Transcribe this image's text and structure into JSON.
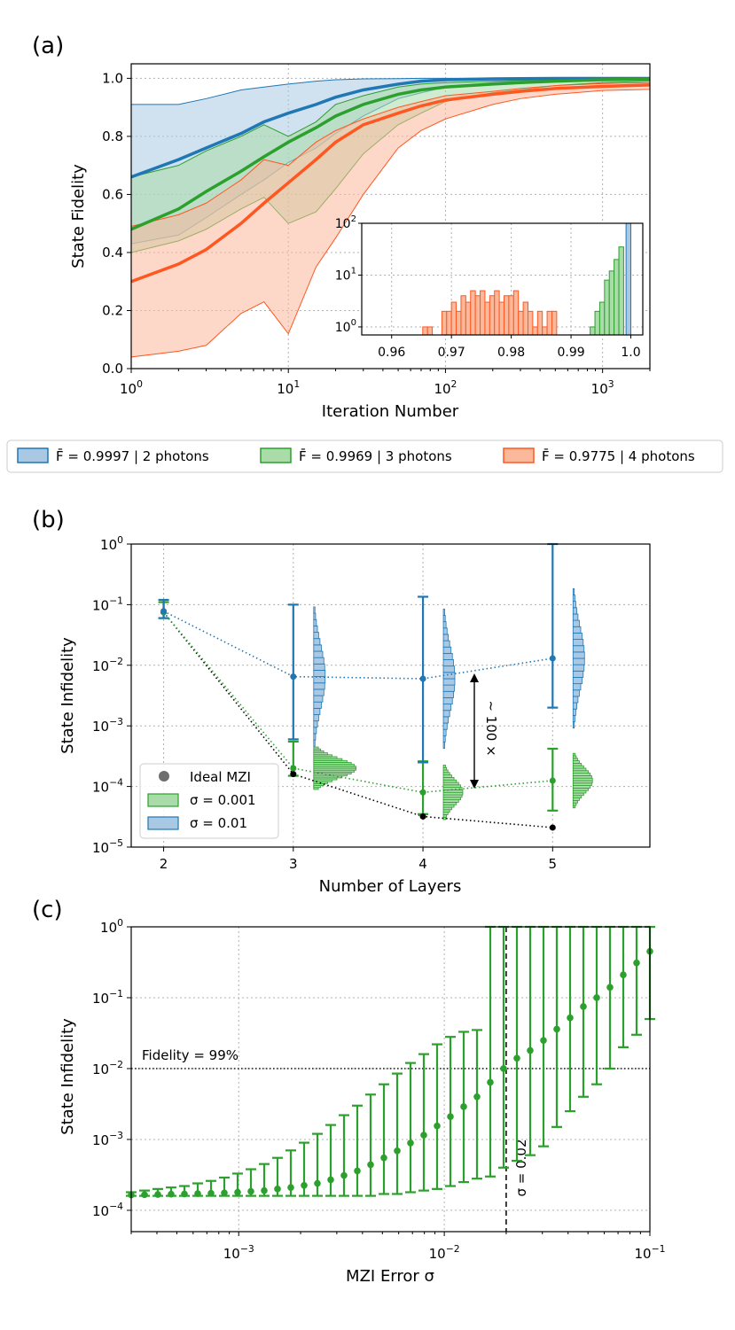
{
  "colors": {
    "blue": "#1f77b4",
    "green": "#2ca02c",
    "orange": "#ff5722",
    "blue_fill": "#a9c8e4",
    "green_fill": "#a9dca9",
    "orange_fill": "#fbb89a"
  },
  "chart_data": [
    {
      "panel": "(a)",
      "type": "line",
      "xscale": "log",
      "xlim": [
        1,
        2000
      ],
      "ylim": [
        0.0,
        1.05
      ],
      "xlabel": "Iteration Number",
      "ylabel": "State Fidelity",
      "xticks": [
        1,
        10,
        100,
        1000
      ],
      "xtick_labels": [
        "10^0",
        "10^1",
        "10^2",
        "10^3"
      ],
      "yticks": [
        0.0,
        0.2,
        0.4,
        0.6,
        0.8,
        1.0
      ],
      "ytick_labels": [
        "0.0",
        "0.2",
        "0.4",
        "0.6",
        "0.8",
        "1.0"
      ],
      "x": [
        1,
        2,
        3,
        5,
        7,
        10,
        15,
        20,
        30,
        50,
        70,
        100,
        200,
        300,
        500,
        1000,
        2000
      ],
      "series": [
        {
          "name": "2 photons",
          "color": "blue",
          "mean": [
            0.66,
            0.72,
            0.76,
            0.81,
            0.85,
            0.88,
            0.91,
            0.935,
            0.96,
            0.98,
            0.99,
            0.995,
            0.998,
            0.999,
            0.9995,
            0.9997,
            0.9997
          ],
          "upper": [
            0.91,
            0.91,
            0.93,
            0.96,
            0.97,
            0.98,
            0.99,
            0.995,
            0.998,
            0.999,
            1.0,
            1.0,
            1.0,
            1.0,
            1.0,
            1.0,
            1.0
          ],
          "lower": [
            0.43,
            0.46,
            0.52,
            0.6,
            0.65,
            0.71,
            0.76,
            0.81,
            0.87,
            0.93,
            0.95,
            0.97,
            0.985,
            0.99,
            0.995,
            0.998,
            0.999
          ]
        },
        {
          "name": "3 photons",
          "color": "green",
          "mean": [
            0.48,
            0.55,
            0.61,
            0.68,
            0.73,
            0.78,
            0.83,
            0.87,
            0.91,
            0.945,
            0.96,
            0.97,
            0.98,
            0.985,
            0.99,
            0.995,
            0.9969
          ],
          "upper": [
            0.66,
            0.7,
            0.75,
            0.8,
            0.84,
            0.8,
            0.85,
            0.91,
            0.94,
            0.97,
            0.98,
            0.985,
            0.99,
            0.993,
            0.996,
            0.998,
            0.999
          ],
          "lower": [
            0.4,
            0.44,
            0.48,
            0.55,
            0.59,
            0.5,
            0.54,
            0.62,
            0.74,
            0.84,
            0.88,
            0.92,
            0.95,
            0.96,
            0.975,
            0.985,
            0.99
          ]
        },
        {
          "name": "4 photons",
          "color": "orange",
          "mean": [
            0.3,
            0.36,
            0.41,
            0.5,
            0.57,
            0.64,
            0.72,
            0.78,
            0.84,
            0.88,
            0.905,
            0.925,
            0.945,
            0.955,
            0.965,
            0.972,
            0.977
          ],
          "upper": [
            0.49,
            0.53,
            0.57,
            0.65,
            0.72,
            0.7,
            0.78,
            0.82,
            0.86,
            0.9,
            0.92,
            0.94,
            0.955,
            0.965,
            0.975,
            0.982,
            0.985
          ],
          "lower": [
            0.04,
            0.06,
            0.08,
            0.19,
            0.23,
            0.12,
            0.35,
            0.45,
            0.6,
            0.76,
            0.82,
            0.86,
            0.91,
            0.93,
            0.945,
            0.958,
            0.962
          ]
        }
      ],
      "legend": [
        {
          "label": "F̄ = 0.9997 | 2 photons",
          "color": "blue"
        },
        {
          "label": "F̄ = 0.9969 | 3 photons",
          "color": "green"
        },
        {
          "label": "F̄ = 0.9775 | 4 photons",
          "color": "orange"
        }
      ],
      "inset": {
        "type": "histogram",
        "xlim": [
          0.955,
          1.002
        ],
        "yscale": "log",
        "ylim": [
          0.7,
          100
        ],
        "xticks": [
          0.96,
          0.97,
          0.98,
          0.99,
          1.0
        ],
        "xtick_labels": [
          "0.96",
          "0.97",
          "0.98",
          "0.99",
          "1.0"
        ],
        "yticks": [
          1,
          10,
          100
        ],
        "ytick_labels": [
          "10^0",
          "10^1",
          "10^2"
        ],
        "bin_width": 0.0008,
        "orange_bins": [
          0.9652,
          0.966,
          0.9684,
          0.9692,
          0.97,
          0.9708,
          0.9716,
          0.9724,
          0.9732,
          0.974,
          0.9748,
          0.9756,
          0.9764,
          0.9772,
          0.978,
          0.9788,
          0.9796,
          0.9804,
          0.9812,
          0.982,
          0.9828,
          0.9836,
          0.9844,
          0.9852,
          0.986,
          0.9868
        ],
        "orange_counts": [
          1,
          1,
          2,
          2,
          3,
          2,
          4,
          3,
          5,
          4,
          5,
          3,
          4,
          5,
          3,
          4,
          4,
          5,
          2,
          3,
          2,
          1,
          2,
          1,
          2,
          2
        ],
        "green_bins": [
          0.9932,
          0.994,
          0.9948,
          0.9956,
          0.9964,
          0.9972,
          0.998
        ],
        "green_counts": [
          1,
          2,
          3,
          8,
          12,
          20,
          35
        ],
        "blue_bins": [
          0.9992
        ],
        "blue_counts": [
          100
        ]
      }
    },
    {
      "panel": "(b)",
      "type": "scatter",
      "xlim": [
        1.75,
        5.75
      ],
      "yscale": "log",
      "ylim": [
        1e-05,
        1
      ],
      "xlabel": "Number of Layers",
      "ylabel": "State Infidelity",
      "xticks": [
        2,
        3,
        4,
        5
      ],
      "xtick_labels": [
        "2",
        "3",
        "4",
        "5"
      ],
      "yticks": [
        1e-05,
        0.0001,
        0.001,
        0.01,
        0.1,
        1
      ],
      "ytick_labels": [
        "10^-5",
        "10^-4",
        "10^-3",
        "10^-2",
        "10^-1",
        "10^0"
      ],
      "series": [
        {
          "name": "Ideal MZI",
          "color": "#000000",
          "x": [
            2,
            3,
            4,
            5
          ],
          "y": [
            0.075,
            0.00016,
            3.2e-05,
            2.1e-05
          ]
        },
        {
          "name": "σ = 0.001",
          "color": "green",
          "x": [
            2,
            3,
            4,
            5
          ],
          "y": [
            0.075,
            0.0002,
            8e-05,
            0.000125
          ],
          "err_low": [
            0.06,
            0.00015,
            3.5e-05,
            4e-05
          ],
          "err_high": [
            0.11,
            0.00055,
            0.00026,
            0.00042
          ]
        },
        {
          "name": "σ = 0.01",
          "color": "blue",
          "x": [
            2,
            3,
            4,
            5
          ],
          "y": [
            0.078,
            0.0065,
            0.006,
            0.013
          ],
          "err_low": [
            0.06,
            0.0006,
            0.00025,
            0.002
          ],
          "err_high": [
            0.12,
            0.1,
            0.135,
            1.0
          ]
        }
      ],
      "legend": [
        {
          "label": "Ideal MZI"
        },
        {
          "label": "σ = 0.001"
        },
        {
          "label": "σ = 0.01"
        }
      ],
      "annotation": "~ 100 ×"
    },
    {
      "panel": "(c)",
      "type": "scatter",
      "xscale": "log",
      "yscale": "log",
      "xlim": [
        0.0003,
        0.1
      ],
      "ylim": [
        5e-05,
        1
      ],
      "xlabel": "MZI Error σ",
      "ylabel": "State Infidelity",
      "xticks": [
        0.001,
        0.01,
        0.1
      ],
      "xtick_labels": [
        "10^-3",
        "10^-2",
        "10^-1"
      ],
      "yticks": [
        0.0001,
        0.001,
        0.01,
        0.1,
        1
      ],
      "ytick_labels": [
        "10^-4",
        "10^-3",
        "10^-2",
        "10^-1",
        "10^0"
      ],
      "hline": {
        "y": 0.01,
        "label": "Fidelity = 99%"
      },
      "vline": {
        "x": 0.02,
        "label": "σ = 0.02"
      },
      "n_points": 40,
      "x_start": 0.0003,
      "x_end": 0.1,
      "y": [
        0.000165,
        0.000166,
        0.000167,
        0.000169,
        0.00017,
        0.000172,
        0.000174,
        0.000176,
        0.00018,
        0.000185,
        0.00019,
        0.0002,
        0.00021,
        0.000225,
        0.00024,
        0.00027,
        0.00031,
        0.00036,
        0.00044,
        0.00055,
        0.00069,
        0.00089,
        0.00115,
        0.00155,
        0.0021,
        0.0029,
        0.004,
        0.0064,
        0.01,
        0.014,
        0.018,
        0.025,
        0.036,
        0.052,
        0.075,
        0.1,
        0.14,
        0.21,
        0.31,
        0.45
      ],
      "err_low": [
        0.00016,
        0.00016,
        0.00016,
        0.00016,
        0.00016,
        0.00016,
        0.00016,
        0.00016,
        0.00016,
        0.00016,
        0.00016,
        0.00016,
        0.00016,
        0.00016,
        0.00016,
        0.00016,
        0.00016,
        0.00016,
        0.00016,
        0.00017,
        0.00017,
        0.00018,
        0.00019,
        0.0002,
        0.00022,
        0.00025,
        0.00028,
        0.0003,
        0.0004,
        0.0005,
        0.0006,
        0.0008,
        0.0015,
        0.0025,
        0.004,
        0.006,
        0.01,
        0.02,
        0.03,
        0.05
      ],
      "err_high": [
        0.00018,
        0.00019,
        0.0002,
        0.00021,
        0.00022,
        0.00024,
        0.00026,
        0.00029,
        0.00033,
        0.00038,
        0.00045,
        0.00055,
        0.0007,
        0.0009,
        0.0012,
        0.0016,
        0.0022,
        0.003,
        0.0043,
        0.006,
        0.0085,
        0.012,
        0.016,
        0.022,
        0.028,
        0.033,
        0.035,
        1.0,
        1.0,
        1.0,
        1.0,
        1.0,
        1.0,
        1.0,
        1.0,
        1.0,
        1.0,
        1.0,
        1.0,
        1.0
      ]
    }
  ]
}
